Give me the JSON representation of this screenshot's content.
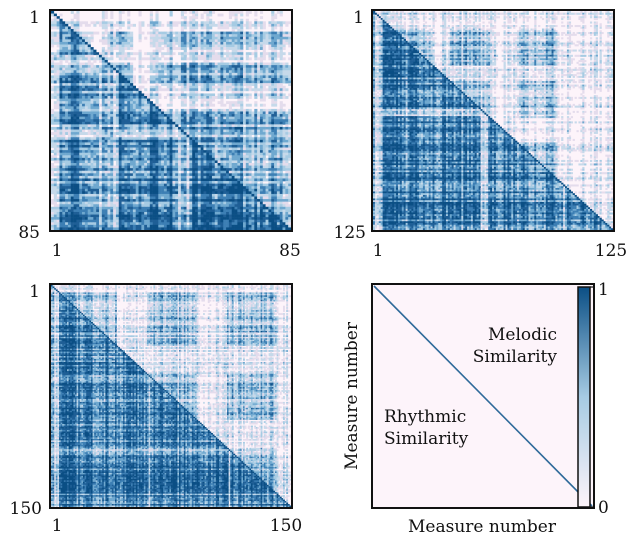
{
  "colors": {
    "low": "#fdf4fa",
    "mid": "#a6cbe3",
    "high": "#0b4f85",
    "frame": "#111111"
  },
  "chart_data": [
    {
      "type": "heatmap",
      "n": 85,
      "tick_labels": {
        "y_top": "1",
        "y_bottom": "85",
        "x_left": "1",
        "x_right": "85"
      },
      "upper": {
        "density": 0.45,
        "bands": [
          [
            8,
            14
          ],
          [
            20,
            28
          ],
          [
            38,
            84
          ]
        ]
      },
      "lower": {
        "density": 0.72,
        "bands": [
          [
            3,
            16
          ],
          [
            24,
            44
          ],
          [
            50,
            84
          ]
        ]
      }
    },
    {
      "type": "heatmap",
      "n": 125,
      "tick_labels": {
        "y_top": "1",
        "y_bottom": "125",
        "x_left": "1",
        "x_right": "125"
      },
      "upper": {
        "density": 0.38,
        "bands": [
          [
            10,
            30
          ],
          [
            40,
            60
          ],
          [
            75,
            95
          ]
        ]
      },
      "lower": {
        "density": 0.68,
        "bands": [
          [
            5,
            55
          ],
          [
            60,
            98
          ],
          [
            100,
            124
          ]
        ]
      }
    },
    {
      "type": "heatmap",
      "n": 150,
      "tick_labels": {
        "y_top": "1",
        "y_bottom": "150",
        "x_left": "1",
        "x_right": "150"
      },
      "upper": {
        "density": 0.33,
        "bands": [
          [
            5,
            40
          ],
          [
            60,
            90
          ],
          [
            110,
            140
          ]
        ]
      },
      "lower": {
        "density": 0.6,
        "bands": [
          [
            5,
            60
          ],
          [
            62,
            110
          ],
          [
            112,
            149
          ]
        ]
      }
    }
  ],
  "legend": {
    "xlabel": "Measure number",
    "ylabel": "Measure number",
    "upper_label": [
      "Melodic",
      "Similarity"
    ],
    "lower_label": [
      "Rhythmic",
      "Similarity"
    ],
    "colorbar": {
      "min_label": "0",
      "max_label": "1",
      "range": [
        0,
        1
      ]
    }
  }
}
